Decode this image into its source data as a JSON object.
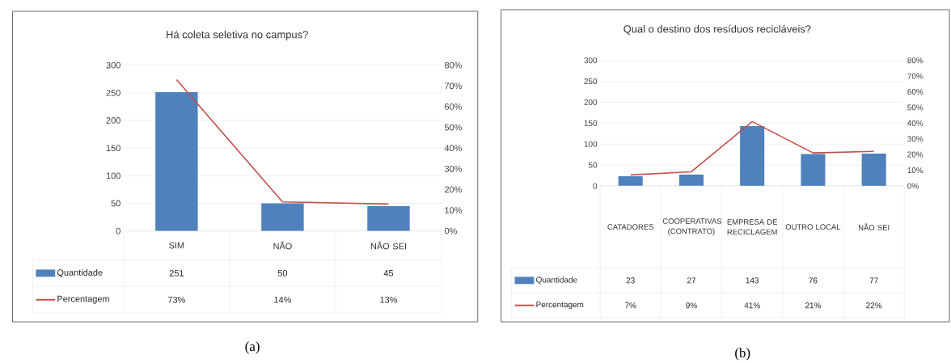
{
  "chart_data": [
    {
      "type": "bar",
      "title": "Há coleta seletiva no campus?",
      "categories": [
        "SIM",
        "NÃO",
        "NÃO SEI"
      ],
      "series": [
        {
          "name": "Quantidade",
          "color": "#4f81bd",
          "values": [
            251,
            50,
            45
          ],
          "value_labels": [
            "251",
            "50",
            "45"
          ]
        },
        {
          "name": "Percentagem",
          "type": "line",
          "axis": "y2",
          "color": "#c0504d",
          "values": [
            73,
            14,
            13
          ],
          "value_labels": [
            "73%",
            "14%",
            "13%"
          ]
        }
      ],
      "ylim": [
        0,
        300
      ],
      "yticks": [
        0,
        50,
        100,
        150,
        200,
        250,
        300
      ],
      "y2lim": [
        0,
        80
      ],
      "y2ticks": [
        {
          "value": 0,
          "label": "0%"
        },
        {
          "value": 10,
          "label": "10%"
        },
        {
          "value": 20,
          "label": "20%"
        },
        {
          "value": 30,
          "label": "30%"
        },
        {
          "value": 40,
          "label": "40%"
        },
        {
          "value": 50,
          "label": "50%"
        },
        {
          "value": 60,
          "label": "60%"
        },
        {
          "value": 70,
          "label": "70%"
        },
        {
          "value": 80,
          "label": "80%"
        }
      ],
      "grid": "y",
      "legend": "bottom left",
      "annotations": [
        "(a)"
      ]
    },
    {
      "type": "bar",
      "title": "Qual o destino dos resíduos recicláveis?",
      "categories": [
        "CATADORES",
        "COOPERATIVAS (CONTRATO)",
        "EMPRESA DE RECICLAGEM",
        "OUTRO LOCAL",
        "NÃO SEI"
      ],
      "series": [
        {
          "name": "Quantidade",
          "color": "#4f81bd",
          "values": [
            23,
            27,
            143,
            76,
            77
          ],
          "value_labels": [
            "23",
            "27",
            "143",
            "76",
            "77"
          ]
        },
        {
          "name": "Percentagem",
          "type": "line",
          "axis": "y2",
          "color": "#c0504d",
          "values": [
            7,
            9,
            41,
            21,
            22
          ],
          "value_labels": [
            "7%",
            "9%",
            "41%",
            "21%",
            "22%"
          ]
        }
      ],
      "ylim": [
        0,
        300
      ],
      "yticks": [
        0,
        50,
        100,
        150,
        200,
        250,
        300
      ],
      "y2lim": [
        0,
        80
      ],
      "y2ticks": [
        {
          "value": 0,
          "label": "0%"
        },
        {
          "value": 10,
          "label": "10%"
        },
        {
          "value": 20,
          "label": "20%"
        },
        {
          "value": 30,
          "label": "30%"
        },
        {
          "value": 40,
          "label": "40%"
        },
        {
          "value": 50,
          "label": "50%"
        },
        {
          "value": 60,
          "label": "60%"
        },
        {
          "value": 70,
          "label": "70%"
        },
        {
          "value": 80,
          "label": "80%"
        }
      ],
      "grid": "y",
      "legend": "bottom left",
      "annotations": [
        "(b)"
      ]
    }
  ]
}
